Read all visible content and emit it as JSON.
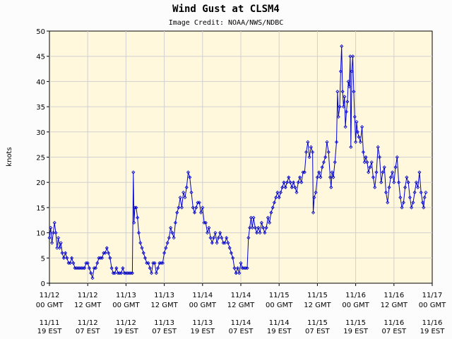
{
  "chart_data": {
    "type": "line",
    "title": "Wind Gust at CLSM4",
    "subtitle": "Image Credit: NOAA/NWS/NDBC",
    "ylabel": "knots",
    "ylim": [
      0,
      50
    ],
    "yticks": [
      0,
      5,
      10,
      15,
      20,
      25,
      30,
      35,
      40,
      45,
      50
    ],
    "grid": true,
    "line_color": "#0000cc",
    "plot_background": "#fff8dc",
    "x_unit": "hours since 11/12 00 GMT",
    "xlim": [
      0,
      120
    ],
    "xticks": [
      {
        "x": 0,
        "gmt": [
          "11/12",
          "00 GMT"
        ],
        "est": [
          "11/11",
          "19 EST"
        ]
      },
      {
        "x": 12,
        "gmt": [
          "11/12",
          "12 GMT"
        ],
        "est": [
          "11/12",
          "07 EST"
        ]
      },
      {
        "x": 24,
        "gmt": [
          "11/13",
          "00 GMT"
        ],
        "est": [
          "11/12",
          "19 EST"
        ]
      },
      {
        "x": 36,
        "gmt": [
          "11/13",
          "12 GMT"
        ],
        "est": [
          "11/13",
          "07 EST"
        ]
      },
      {
        "x": 48,
        "gmt": [
          "11/14",
          "00 GMT"
        ],
        "est": [
          "11/13",
          "19 EST"
        ]
      },
      {
        "x": 60,
        "gmt": [
          "11/14",
          "12 GMT"
        ],
        "est": [
          "11/14",
          "07 EST"
        ]
      },
      {
        "x": 72,
        "gmt": [
          "11/15",
          "00 GMT"
        ],
        "est": [
          "11/14",
          "19 EST"
        ]
      },
      {
        "x": 84,
        "gmt": [
          "11/15",
          "12 GMT"
        ],
        "est": [
          "11/15",
          "07 EST"
        ]
      },
      {
        "x": 96,
        "gmt": [
          "11/16",
          "00 GMT"
        ],
        "est": [
          "11/15",
          "19 EST"
        ]
      },
      {
        "x": 108,
        "gmt": [
          "11/16",
          "12 GMT"
        ],
        "est": [
          "11/16",
          "07 EST"
        ]
      },
      {
        "x": 120,
        "gmt": [
          "11/17",
          "00 GMT"
        ],
        "est": [
          "11/16",
          "19 EST"
        ]
      }
    ],
    "series": [
      {
        "name": "Wind Gust",
        "points": [
          [
            0,
            9
          ],
          [
            0.4,
            11
          ],
          [
            0.8,
            8
          ],
          [
            1.2,
            10
          ],
          [
            1.6,
            12
          ],
          [
            2,
            10
          ],
          [
            2.4,
            7
          ],
          [
            2.8,
            9
          ],
          [
            3.2,
            7
          ],
          [
            3.6,
            8
          ],
          [
            4,
            6
          ],
          [
            4.5,
            5
          ],
          [
            5,
            6
          ],
          [
            5.5,
            5
          ],
          [
            6,
            4
          ],
          [
            6.5,
            4
          ],
          [
            7,
            5
          ],
          [
            7.5,
            4
          ],
          [
            8,
            3
          ],
          [
            8.5,
            3
          ],
          [
            9,
            3
          ],
          [
            9.5,
            3
          ],
          [
            10,
            3
          ],
          [
            10.5,
            3
          ],
          [
            11,
            3
          ],
          [
            11.5,
            4
          ],
          [
            12,
            4
          ],
          [
            12.5,
            3
          ],
          [
            13,
            2
          ],
          [
            13.5,
            1
          ],
          [
            14,
            3
          ],
          [
            14.5,
            3
          ],
          [
            15,
            4
          ],
          [
            15.5,
            5
          ],
          [
            16,
            5
          ],
          [
            16.5,
            5
          ],
          [
            17,
            6
          ],
          [
            17.5,
            6
          ],
          [
            18,
            7
          ],
          [
            18.5,
            6
          ],
          [
            19,
            5
          ],
          [
            19.5,
            3
          ],
          [
            20,
            2
          ],
          [
            20.5,
            2
          ],
          [
            21,
            3
          ],
          [
            21.5,
            2
          ],
          [
            22,
            2
          ],
          [
            22.5,
            2
          ],
          [
            23,
            3
          ],
          [
            23.5,
            2
          ],
          [
            24,
            2
          ],
          [
            24.5,
            2
          ],
          [
            25,
            2
          ],
          [
            25.5,
            2
          ],
          [
            26,
            2
          ],
          [
            26.3,
            22
          ],
          [
            26.5,
            12
          ],
          [
            26.8,
            15
          ],
          [
            27.2,
            15
          ],
          [
            27.6,
            13
          ],
          [
            28,
            10
          ],
          [
            28.5,
            8
          ],
          [
            29,
            7
          ],
          [
            29.5,
            6
          ],
          [
            30,
            5
          ],
          [
            30.5,
            4
          ],
          [
            31,
            4
          ],
          [
            31.5,
            3
          ],
          [
            32,
            2
          ],
          [
            32.5,
            4
          ],
          [
            33,
            4
          ],
          [
            33.5,
            2
          ],
          [
            34,
            3
          ],
          [
            34.5,
            4
          ],
          [
            35,
            4
          ],
          [
            35.5,
            4
          ],
          [
            36,
            6
          ],
          [
            36.5,
            7
          ],
          [
            37,
            8
          ],
          [
            37.5,
            9
          ],
          [
            38,
            11
          ],
          [
            38.5,
            10
          ],
          [
            39,
            9
          ],
          [
            39.5,
            12
          ],
          [
            40,
            14
          ],
          [
            40.5,
            15
          ],
          [
            41,
            17
          ],
          [
            41.5,
            15
          ],
          [
            42,
            18
          ],
          [
            42.5,
            17
          ],
          [
            43,
            19
          ],
          [
            43.5,
            22
          ],
          [
            44,
            21
          ],
          [
            44.5,
            18
          ],
          [
            45,
            15
          ],
          [
            45.5,
            14
          ],
          [
            46,
            15
          ],
          [
            46.5,
            16
          ],
          [
            47,
            16
          ],
          [
            47.5,
            14
          ],
          [
            48,
            15
          ],
          [
            48.5,
            12
          ],
          [
            49,
            12
          ],
          [
            49.5,
            10
          ],
          [
            50,
            11
          ],
          [
            50.5,
            9
          ],
          [
            51,
            8
          ],
          [
            51.5,
            9
          ],
          [
            52,
            10
          ],
          [
            52.5,
            8
          ],
          [
            53,
            9
          ],
          [
            53.5,
            10
          ],
          [
            54,
            9
          ],
          [
            54.5,
            8
          ],
          [
            55,
            8
          ],
          [
            55.5,
            9
          ],
          [
            56,
            8
          ],
          [
            56.5,
            7
          ],
          [
            57,
            6
          ],
          [
            57.5,
            5
          ],
          [
            58,
            3
          ],
          [
            58.5,
            2
          ],
          [
            59,
            3
          ],
          [
            59.5,
            2
          ],
          [
            60,
            4
          ],
          [
            60.5,
            3
          ],
          [
            61,
            3
          ],
          [
            61.5,
            3
          ],
          [
            62,
            3
          ],
          [
            62.4,
            9
          ],
          [
            62.8,
            11
          ],
          [
            63.2,
            13
          ],
          [
            63.6,
            11
          ],
          [
            64,
            13
          ],
          [
            64.5,
            11
          ],
          [
            65,
            10
          ],
          [
            65.5,
            11
          ],
          [
            66,
            10
          ],
          [
            66.5,
            12
          ],
          [
            67,
            11
          ],
          [
            67.5,
            10
          ],
          [
            68,
            11
          ],
          [
            68.5,
            13
          ],
          [
            69,
            12
          ],
          [
            69.5,
            14
          ],
          [
            70,
            15
          ],
          [
            70.5,
            16
          ],
          [
            71,
            17
          ],
          [
            71.5,
            18
          ],
          [
            72,
            17
          ],
          [
            72.5,
            18
          ],
          [
            73,
            19
          ],
          [
            73.5,
            20
          ],
          [
            74,
            19
          ],
          [
            74.5,
            20
          ],
          [
            75,
            21
          ],
          [
            75.5,
            20
          ],
          [
            76,
            19
          ],
          [
            76.5,
            20
          ],
          [
            77,
            19
          ],
          [
            77.5,
            18
          ],
          [
            78,
            20
          ],
          [
            78.5,
            21
          ],
          [
            79,
            20
          ],
          [
            79.5,
            22
          ],
          [
            80,
            22
          ],
          [
            80.5,
            26
          ],
          [
            81,
            28
          ],
          [
            81.5,
            25
          ],
          [
            82,
            27
          ],
          [
            82.5,
            26
          ],
          [
            82.7,
            14
          ],
          [
            83,
            17
          ],
          [
            83.5,
            18
          ],
          [
            84,
            21
          ],
          [
            84.5,
            22
          ],
          [
            85,
            21
          ],
          [
            85.5,
            23
          ],
          [
            86,
            24
          ],
          [
            86.5,
            25
          ],
          [
            87,
            28
          ],
          [
            87.5,
            26
          ],
          [
            88,
            21
          ],
          [
            88.3,
            19
          ],
          [
            88.6,
            22
          ],
          [
            89,
            21
          ],
          [
            89.5,
            24
          ],
          [
            90,
            28
          ],
          [
            90.3,
            38
          ],
          [
            90.6,
            33
          ],
          [
            91,
            35
          ],
          [
            91.3,
            42
          ],
          [
            91.6,
            47
          ],
          [
            91.9,
            38
          ],
          [
            92.2,
            35
          ],
          [
            92.5,
            37
          ],
          [
            92.8,
            31
          ],
          [
            93.1,
            34
          ],
          [
            93.4,
            36
          ],
          [
            93.7,
            40
          ],
          [
            94,
            39
          ],
          [
            94.3,
            45
          ],
          [
            94.5,
            27
          ],
          [
            94.8,
            42
          ],
          [
            95.1,
            45
          ],
          [
            95.4,
            38
          ],
          [
            95.7,
            33
          ],
          [
            96,
            28
          ],
          [
            96.3,
            32
          ],
          [
            96.6,
            30
          ],
          [
            97,
            29
          ],
          [
            97.5,
            28
          ],
          [
            98,
            31
          ],
          [
            98.4,
            26
          ],
          [
            98.8,
            24
          ],
          [
            99.2,
            25
          ],
          [
            99.6,
            24
          ],
          [
            100,
            22
          ],
          [
            100.5,
            23
          ],
          [
            101,
            24
          ],
          [
            101.5,
            21
          ],
          [
            102,
            19
          ],
          [
            102.5,
            22
          ],
          [
            103,
            27
          ],
          [
            103.5,
            25
          ],
          [
            104,
            20
          ],
          [
            104.5,
            22
          ],
          [
            105,
            23
          ],
          [
            105.5,
            18
          ],
          [
            106,
            16
          ],
          [
            106.5,
            19
          ],
          [
            107,
            21
          ],
          [
            107.5,
            22
          ],
          [
            108,
            20
          ],
          [
            108.5,
            23
          ],
          [
            109,
            25
          ],
          [
            109.5,
            20
          ],
          [
            110,
            17
          ],
          [
            110.5,
            15
          ],
          [
            111,
            16
          ],
          [
            111.5,
            19
          ],
          [
            112,
            21
          ],
          [
            112.5,
            20
          ],
          [
            113,
            17
          ],
          [
            113.5,
            15
          ],
          [
            114,
            16
          ],
          [
            114.5,
            18
          ],
          [
            115,
            20
          ],
          [
            115.5,
            19
          ],
          [
            116,
            22
          ],
          [
            116.5,
            18
          ],
          [
            117,
            16
          ],
          [
            117.3,
            15
          ],
          [
            117.6,
            17
          ],
          [
            118,
            18
          ]
        ]
      }
    ]
  }
}
